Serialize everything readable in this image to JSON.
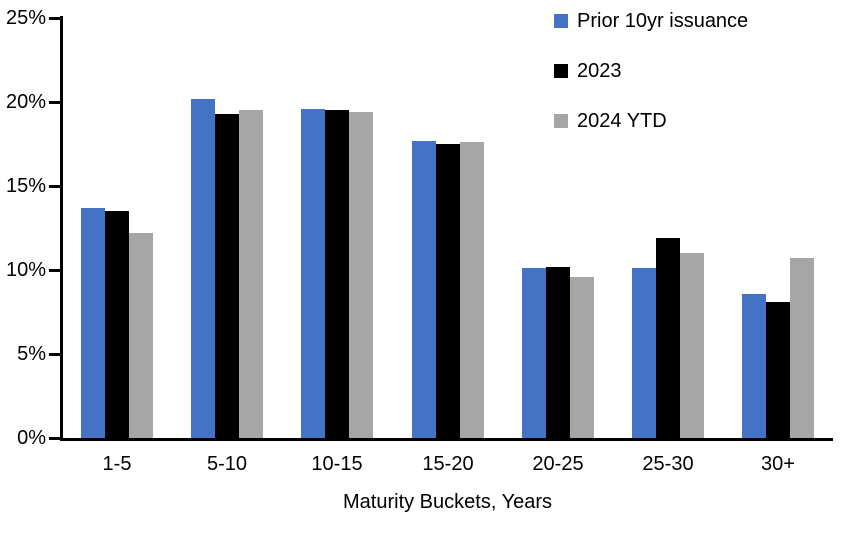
{
  "chart_data": {
    "type": "bar",
    "title": "",
    "categories": [
      "1-5",
      "5-10",
      "10-15",
      "15-20",
      "20-25",
      "25-30",
      "30+"
    ],
    "series": [
      {
        "name": "Prior 10yr issuance",
        "color": "#4472C4",
        "values": [
          13.7,
          20.2,
          19.6,
          17.7,
          10.1,
          10.1,
          8.6
        ]
      },
      {
        "name": "2023",
        "color": "#000000",
        "values": [
          13.5,
          19.3,
          19.5,
          17.5,
          10.2,
          11.9,
          8.1
        ]
      },
      {
        "name": "2024 YTD",
        "color": "#A6A6A6",
        "values": [
          12.2,
          19.5,
          19.4,
          17.6,
          9.6,
          11.0,
          10.7
        ]
      }
    ],
    "xlabel": "Maturity Buckets, Years",
    "ylabel": "",
    "ylim": [
      0,
      25
    ],
    "ytick_step": 5,
    "ytick_labels": [
      "0%",
      "5%",
      "10%",
      "15%",
      "20%",
      "25%"
    ],
    "grid": false,
    "legend_position": "top-right"
  }
}
